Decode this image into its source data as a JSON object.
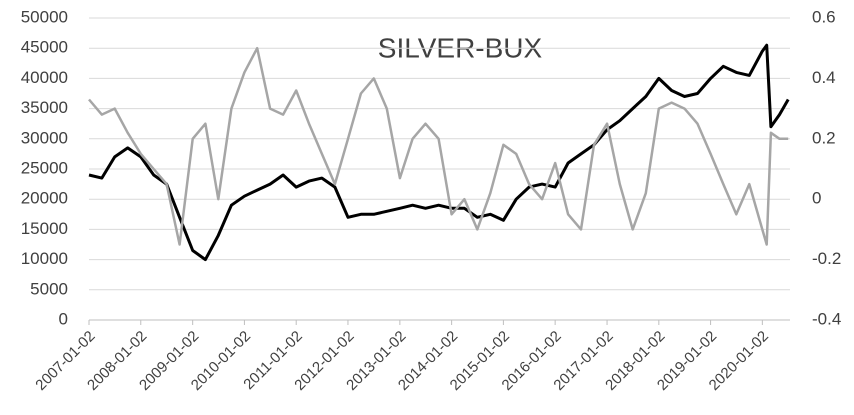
{
  "chart_data": {
    "type": "line",
    "title": "SILVER-BUX",
    "x": [
      "2007-01-02",
      "2007-04-02",
      "2007-07-02",
      "2007-10-02",
      "2008-01-02",
      "2008-04-02",
      "2008-07-02",
      "2008-10-02",
      "2009-01-02",
      "2009-04-02",
      "2009-07-02",
      "2009-10-02",
      "2010-01-02",
      "2010-04-02",
      "2010-07-02",
      "2010-10-02",
      "2011-01-02",
      "2011-04-02",
      "2011-07-02",
      "2011-10-02",
      "2012-01-02",
      "2012-04-02",
      "2012-07-02",
      "2012-10-02",
      "2013-01-02",
      "2013-04-02",
      "2013-07-02",
      "2013-10-02",
      "2014-01-02",
      "2014-04-02",
      "2014-07-02",
      "2014-10-02",
      "2015-01-02",
      "2015-04-02",
      "2015-07-02",
      "2015-10-02",
      "2016-01-02",
      "2016-04-02",
      "2016-07-02",
      "2016-10-02",
      "2017-01-02",
      "2017-04-02",
      "2017-07-02",
      "2017-10-02",
      "2018-01-02",
      "2018-04-02",
      "2018-07-02",
      "2018-10-02",
      "2019-01-02",
      "2019-04-02",
      "2019-07-02",
      "2019-10-02",
      "2020-01-02",
      "2020-02-02",
      "2020-03-02",
      "2020-05-02",
      "2020-07-02"
    ],
    "series": [
      {
        "color": "#000000",
        "values": [
          24000,
          23500,
          27000,
          28500,
          27000,
          24000,
          22500,
          17000,
          11500,
          10000,
          14000,
          19000,
          20500,
          21500,
          22500,
          24000,
          22000,
          23000,
          23500,
          22000,
          17000,
          17500,
          17500,
          18000,
          18500,
          19000,
          18500,
          19000,
          18500,
          18500,
          17000,
          17500,
          16500,
          20000,
          22000,
          22500,
          22000,
          26000,
          27500,
          29000,
          31500,
          33000,
          35000,
          37000,
          40000,
          38000,
          37000,
          37500,
          40000,
          42000,
          41000,
          40500,
          44500,
          45500,
          32000,
          34000,
          36500
        ]
      },
      {
        "color": "#a6a6a6",
        "axis": "y2",
        "values": [
          0.33,
          0.28,
          0.3,
          0.22,
          0.15,
          0.1,
          0.05,
          -0.15,
          0.2,
          0.25,
          0.0,
          0.3,
          0.42,
          0.5,
          0.3,
          0.28,
          0.36,
          0.25,
          0.15,
          0.05,
          0.2,
          0.35,
          0.4,
          0.3,
          0.07,
          0.2,
          0.25,
          0.2,
          -0.05,
          0.0,
          -0.1,
          0.02,
          0.18,
          0.15,
          0.05,
          0.0,
          0.12,
          -0.05,
          -0.1,
          0.18,
          0.25,
          0.05,
          -0.1,
          0.02,
          0.3,
          0.32,
          0.3,
          0.25,
          0.15,
          0.05,
          -0.05,
          0.05,
          -0.1,
          -0.15,
          0.22,
          0.2,
          0.2
        ]
      }
    ],
    "xlim": [
      "2007-01-02",
      "2020-07-15"
    ],
    "xticks": [
      "2007-01-02",
      "2008-01-02",
      "2009-01-02",
      "2010-01-02",
      "2011-01-02",
      "2012-01-02",
      "2013-01-02",
      "2014-01-02",
      "2015-01-02",
      "2016-01-02",
      "2017-01-02",
      "2018-01-02",
      "2019-01-02",
      "2020-01-02"
    ],
    "ylim": [
      0,
      50000
    ],
    "yticks": [
      0,
      5000,
      10000,
      15000,
      20000,
      25000,
      30000,
      35000,
      40000,
      45000,
      50000
    ],
    "y2lim": [
      -0.4,
      0.6
    ],
    "y2ticks": [
      -0.4,
      -0.2,
      0,
      0.2,
      0.4,
      0.6
    ],
    "grid": true
  }
}
